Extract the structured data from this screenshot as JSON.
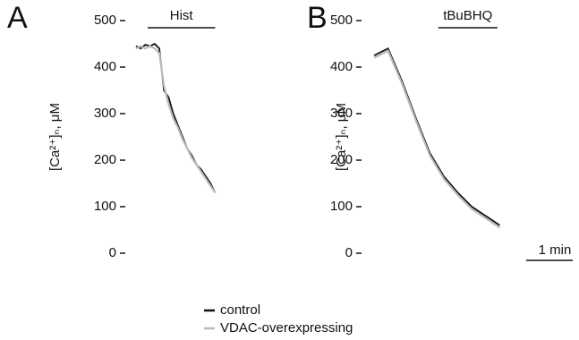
{
  "chart_data": [
    {
      "type": "line",
      "panel": "A",
      "ylabel": "[Ca²⁺]ₙ, μM",
      "ylim": [
        0,
        500
      ],
      "yticks": [
        0,
        100,
        200,
        300,
        400,
        500
      ],
      "xlim": [
        0,
        2
      ],
      "annotation": {
        "label": "Hist",
        "x": [
          0.25,
          1.7
        ]
      },
      "x": [
        0,
        0.1,
        0.2,
        0.3,
        0.4,
        0.5,
        0.6,
        0.7,
        0.8,
        0.9,
        1.0,
        1.1,
        1.2,
        1.3,
        1.4,
        1.5,
        1.6,
        1.7
      ],
      "series": [
        {
          "name": "control",
          "color": "#111111",
          "values": [
            445,
            440,
            448,
            445,
            450,
            440,
            350,
            335,
            300,
            275,
            250,
            225,
            210,
            190,
            180,
            165,
            150,
            130
          ]
        },
        {
          "name": "VDAC-overexpressing",
          "color": "#bbbbbb",
          "values": [
            440,
            445,
            440,
            445,
            440,
            430,
            360,
            320,
            290,
            270,
            245,
            225,
            205,
            190,
            175,
            160,
            145,
            130
          ]
        }
      ]
    },
    {
      "type": "line",
      "panel": "B",
      "ylabel": "[Ca²⁺]ₙ, μM",
      "ylim": [
        0,
        500
      ],
      "yticks": [
        0,
        100,
        200,
        300,
        400,
        500
      ],
      "xlim": [
        0,
        3.5
      ],
      "annotation": {
        "label": "tBuBHQ",
        "x": [
          1.38,
          2.65
        ]
      },
      "scale_bar": {
        "label": "1 min",
        "value": 1
      },
      "x": [
        0,
        0.3,
        0.6,
        0.9,
        1.2,
        1.5,
        1.8,
        2.1,
        2.4,
        2.7
      ],
      "series": [
        {
          "color": "#111111",
          "values": [
            425,
            440,
            370,
            290,
            215,
            165,
            130,
            100,
            80,
            60
          ]
        },
        {
          "color": "#bbbbbb",
          "values": [
            420,
            435,
            365,
            285,
            210,
            160,
            125,
            95,
            75,
            55
          ]
        }
      ]
    }
  ]
}
